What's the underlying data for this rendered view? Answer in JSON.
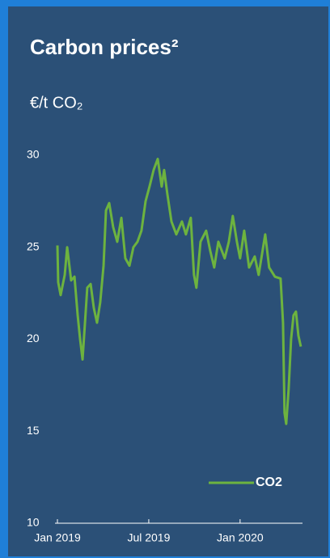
{
  "chart_data": {
    "type": "line",
    "title": "Carbon prices²",
    "subtitle": "€/t CO₂",
    "x": [
      0.0,
      0.05,
      0.21,
      0.48,
      0.64,
      0.9,
      1.12,
      1.33,
      1.49,
      1.65,
      1.81,
      1.96,
      2.18,
      2.39,
      2.6,
      2.81,
      3.03,
      3.19,
      3.4,
      3.66,
      3.93,
      4.2,
      4.46,
      4.73,
      4.99,
      5.26,
      5.52,
      5.79,
      6.05,
      6.32,
      6.59,
      6.85,
      7.01,
      7.22,
      7.49,
      7.81,
      8.18,
      8.44,
      8.76,
      8.97,
      9.13,
      9.4,
      9.77,
      10.04,
      10.3,
      10.57,
      10.99,
      11.26,
      11.52,
      11.79,
      12.0,
      12.27,
      12.59,
      12.96,
      13.22,
      13.65,
      13.91,
      14.29,
      14.66,
      14.82,
      14.92,
      15.03,
      15.19,
      15.35,
      15.51,
      15.67,
      15.83,
      15.99
    ],
    "series": [
      {
        "name": "CO2",
        "color": "#6db33f",
        "values": [
          25.1,
          23.1,
          22.4,
          23.5,
          25.0,
          23.2,
          23.4,
          21.3,
          20.0,
          18.9,
          20.9,
          22.8,
          23.0,
          21.7,
          20.9,
          22.0,
          24.0,
          27.0,
          27.4,
          26.1,
          25.3,
          26.6,
          24.4,
          24.0,
          25.0,
          25.3,
          25.9,
          27.5,
          28.3,
          29.2,
          29.8,
          28.3,
          29.2,
          27.9,
          26.4,
          25.7,
          26.4,
          25.7,
          26.6,
          23.5,
          22.8,
          25.3,
          25.9,
          24.8,
          23.9,
          25.3,
          24.4,
          25.3,
          26.7,
          25.3,
          24.4,
          25.9,
          23.9,
          24.5,
          23.5,
          25.7,
          23.9,
          23.4,
          23.3,
          20.9,
          16.0,
          15.4,
          17.3,
          20.0,
          21.3,
          21.5,
          20.2,
          19.6
        ]
      }
    ],
    "xlim": [
      -0.16,
      16.1
    ],
    "xticks": [
      {
        "value": 0,
        "label": "Jan 2019"
      },
      {
        "value": 6,
        "label": "Jul 2019"
      },
      {
        "value": 12,
        "label": "Jan 2020"
      }
    ],
    "ylim": [
      10,
      30
    ],
    "yticks": [
      10,
      15,
      20,
      25,
      30
    ],
    "grid": false,
    "legend": "lower right"
  }
}
